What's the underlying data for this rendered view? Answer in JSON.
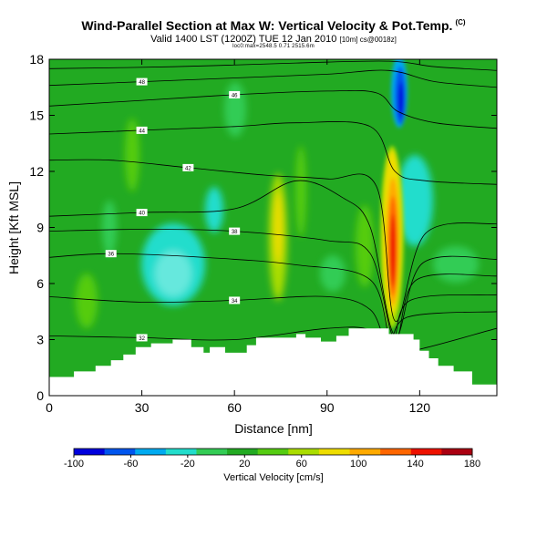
{
  "chart_data": {
    "type": "heatmap",
    "title": "Wind-Parallel Section at Max W: Vertical Velocity & Pot.Temp.",
    "title_mark": "(C)",
    "subtitle": "Valid 1400 LST (1200Z) TUE 12 Jan 2010",
    "subtitle_detail": "[10m] cs@0018z]",
    "subnote": "loc0:max=2548.5  0.71 2515.6m",
    "xlabel": "Distance [nm]",
    "ylabel": "Height [Kft MSL]",
    "xlim": [
      0,
      145
    ],
    "ylim": [
      0,
      18
    ],
    "xticks": [
      0,
      30,
      60,
      90,
      120
    ],
    "yticks": [
      0,
      3,
      6,
      9,
      12,
      15,
      18
    ],
    "grid": false,
    "colorbar": {
      "label": "Vertical Velocity [cm/s]",
      "range": [
        -100,
        180
      ],
      "ticks": [
        -100,
        -60,
        -20,
        20,
        60,
        100,
        140,
        180
      ],
      "colors": [
        "#0000dd",
        "#0055ee",
        "#00aaf0",
        "#22ddcc",
        "#33cc55",
        "#22aa22",
        "#55cc11",
        "#aadd00",
        "#eedd00",
        "#ffaa00",
        "#ff6600",
        "#ee1100",
        "#aa0011"
      ]
    },
    "terrain": [
      [
        0,
        1.0
      ],
      [
        8,
        1.0
      ],
      [
        8,
        1.3
      ],
      [
        15,
        1.3
      ],
      [
        15,
        1.6
      ],
      [
        20,
        1.6
      ],
      [
        20,
        1.9
      ],
      [
        24,
        1.9
      ],
      [
        24,
        2.2
      ],
      [
        28,
        2.2
      ],
      [
        28,
        2.6
      ],
      [
        33,
        2.6
      ],
      [
        33,
        2.8
      ],
      [
        40,
        2.8
      ],
      [
        40,
        3.0
      ],
      [
        46,
        3.0
      ],
      [
        46,
        2.6
      ],
      [
        50,
        2.6
      ],
      [
        50,
        2.3
      ],
      [
        52,
        2.3
      ],
      [
        52,
        2.6
      ],
      [
        57,
        2.6
      ],
      [
        57,
        2.3
      ],
      [
        64,
        2.3
      ],
      [
        64,
        2.7
      ],
      [
        67,
        2.7
      ],
      [
        67,
        3.1
      ],
      [
        80,
        3.1
      ],
      [
        80,
        3.3
      ],
      [
        83,
        3.3
      ],
      [
        83,
        3.1
      ],
      [
        88,
        3.1
      ],
      [
        88,
        2.9
      ],
      [
        93,
        2.9
      ],
      [
        93,
        3.2
      ],
      [
        97,
        3.2
      ],
      [
        97,
        3.6
      ],
      [
        110,
        3.6
      ],
      [
        110,
        3.3
      ],
      [
        118,
        3.3
      ],
      [
        118,
        3.0
      ],
      [
        120,
        3.0
      ],
      [
        120,
        2.4
      ],
      [
        123,
        2.4
      ],
      [
        123,
        2.0
      ],
      [
        126,
        2.0
      ],
      [
        126,
        1.6
      ],
      [
        131,
        1.6
      ],
      [
        131,
        1.3
      ],
      [
        137,
        1.3
      ],
      [
        137,
        0.6
      ],
      [
        145,
        0.6
      ]
    ],
    "isotherms": [
      {
        "label": "32",
        "points": [
          [
            0,
            3.2
          ],
          [
            30,
            3.1
          ],
          [
            60,
            3.0
          ],
          [
            90,
            3.6
          ],
          [
            104,
            3.5
          ],
          [
            110,
            2.2
          ],
          [
            145,
            3.6
          ]
        ]
      },
      {
        "label": "34",
        "points": [
          [
            0,
            5.3
          ],
          [
            30,
            5.0
          ],
          [
            60,
            5.1
          ],
          [
            90,
            5.3
          ],
          [
            104,
            4.6
          ],
          [
            110,
            2.6
          ],
          [
            116,
            4.2
          ],
          [
            145,
            4.5
          ]
        ]
      },
      {
        "label": "36",
        "points": [
          [
            0,
            7.4
          ],
          [
            20,
            7.6
          ],
          [
            50,
            7.4
          ],
          [
            80,
            7.0
          ],
          [
            104,
            6.2
          ],
          [
            111,
            2.8
          ],
          [
            117,
            5.1
          ],
          [
            145,
            5.4
          ]
        ]
      },
      {
        "label": "38",
        "points": [
          [
            0,
            8.8
          ],
          [
            30,
            8.9
          ],
          [
            60,
            8.8
          ],
          [
            90,
            8.3
          ],
          [
            104,
            7.6
          ],
          [
            112,
            3.0
          ],
          [
            119,
            6.2
          ],
          [
            145,
            6.4
          ]
        ]
      },
      {
        "label": "40",
        "points": [
          [
            0,
            9.6
          ],
          [
            30,
            9.8
          ],
          [
            60,
            10.0
          ],
          [
            80,
            11.5
          ],
          [
            95,
            10.6
          ],
          [
            104,
            9.0
          ],
          [
            112,
            3.2
          ],
          [
            121,
            7.1
          ],
          [
            145,
            7.3
          ]
        ]
      },
      {
        "label": "42",
        "points": [
          [
            0,
            12.6
          ],
          [
            20,
            12.6
          ],
          [
            45,
            12.2
          ],
          [
            70,
            11.8
          ],
          [
            90,
            11.6
          ],
          [
            106,
            11.2
          ],
          [
            112,
            4.0
          ],
          [
            122,
            8.7
          ],
          [
            145,
            9.2
          ]
        ]
      },
      {
        "label": "44",
        "points": [
          [
            0,
            14.0
          ],
          [
            30,
            14.2
          ],
          [
            60,
            14.4
          ],
          [
            80,
            14.6
          ],
          [
            104,
            14.4
          ],
          [
            112,
            12.0
          ],
          [
            122,
            11.5
          ],
          [
            145,
            11.3
          ]
        ]
      },
      {
        "label": "46",
        "points": [
          [
            0,
            15.5
          ],
          [
            30,
            15.8
          ],
          [
            60,
            16.1
          ],
          [
            90,
            16.3
          ],
          [
            106,
            16.2
          ],
          [
            113,
            15.2
          ],
          [
            125,
            14.6
          ],
          [
            145,
            14.3
          ]
        ]
      },
      {
        "label": "48",
        "points": [
          [
            0,
            16.6
          ],
          [
            30,
            16.8
          ],
          [
            60,
            17.0
          ],
          [
            90,
            17.2
          ],
          [
            110,
            17.4
          ],
          [
            125,
            16.8
          ],
          [
            145,
            16.5
          ]
        ]
      },
      {
        "label": "",
        "points": [
          [
            0,
            17.5
          ],
          [
            40,
            17.6
          ],
          [
            80,
            17.8
          ],
          [
            110,
            17.9
          ],
          [
            125,
            17.6
          ],
          [
            145,
            17.4
          ]
        ]
      }
    ],
    "velocity_features": [
      {
        "kind": "updraft",
        "peak": 180,
        "x": 109,
        "y_range": [
          3.5,
          13.5
        ]
      },
      {
        "kind": "downdraft",
        "peak": -100,
        "x": 112,
        "y_range": [
          9.0,
          18.0
        ]
      }
    ]
  }
}
